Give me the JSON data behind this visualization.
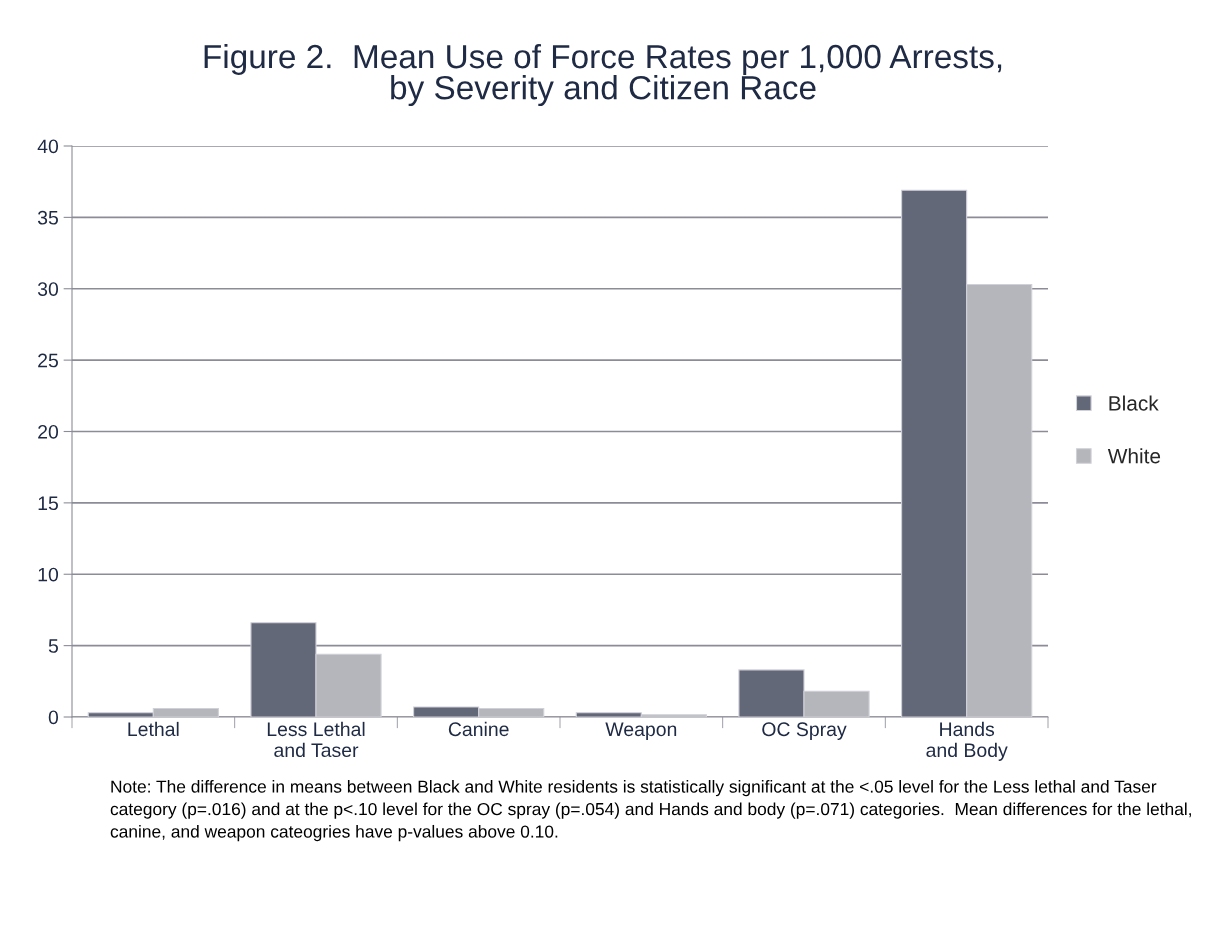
{
  "chart_data": {
    "type": "bar",
    "title": "Figure 2.  Mean Use of Force Rates per 1,000 Arrests,\nby Severity and Citizen Race",
    "categories": [
      "Lethal",
      "Less Lethal\nand Taser",
      "Canine",
      "Weapon",
      "OC Spray",
      "Hands\nand Body"
    ],
    "series": [
      {
        "name": "Black",
        "color": "#636879",
        "values": [
          0.3,
          6.6,
          0.7,
          0.3,
          3.3,
          36.9
        ]
      },
      {
        "name": "White",
        "color": "#b5b6bb",
        "values": [
          0.6,
          4.4,
          0.6,
          0.15,
          1.8,
          30.3
        ]
      }
    ],
    "ylim": [
      0,
      40
    ],
    "yticks": [
      0,
      5,
      10,
      15,
      20,
      25,
      30,
      35,
      40
    ],
    "grid": "y",
    "legend": "right",
    "annotations": [
      "Note: The difference in means between Black and White residents is statistically significant at the <.05 level for the Less lethal and Taser category (p=.016) and at the p<.10 level for the OC spray (p=.054) and Hands and body (p=.071) categories.  Mean differences for the lethal, canine, and weapon cateogries have p-values above 0.10."
    ]
  }
}
